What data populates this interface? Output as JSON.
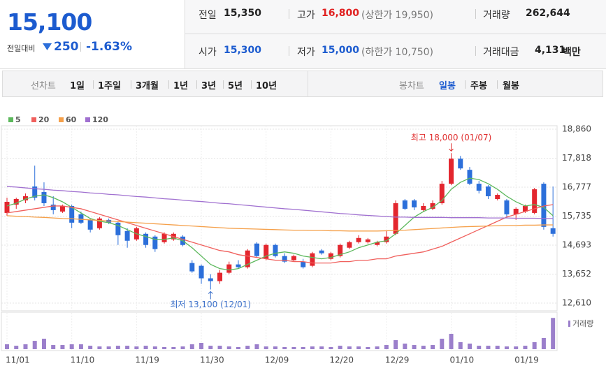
{
  "quote": {
    "price": "15,100",
    "change_label": "전일대비",
    "change": "250",
    "change_rate": "-1.63%",
    "prev_close_label": "전일",
    "prev_close": "15,350",
    "high_label": "고가",
    "high": "16,800",
    "upper_limit": "(상한가 19,950)",
    "volume_label": "거래량",
    "volume": "262,644",
    "open_label": "시가",
    "open": "15,300",
    "low_label": "저가",
    "low": "15,000",
    "lower_limit": "(하한가 10,750)",
    "amount_label": "거래대금",
    "amount": "4,131",
    "amount_unit": "백만"
  },
  "line_tabs": [
    "선차트",
    "1일",
    "1주일",
    "3개월",
    "1년",
    "3년",
    "5년",
    "10년"
  ],
  "candle_tabs": [
    "봉차트",
    "일봉",
    "주봉",
    "월봉"
  ],
  "chart_data": [
    {
      "type": "candlestick",
      "categories": [
        "11/01",
        null,
        null,
        null,
        null,
        null,
        null,
        "11/10",
        null,
        null,
        null,
        null,
        null,
        null,
        "11/19",
        null,
        null,
        null,
        null,
        null,
        null,
        "11/30",
        null,
        null,
        null,
        null,
        null,
        null,
        "12/09",
        null,
        null,
        null,
        null,
        null,
        null,
        "12/20",
        null,
        null,
        null,
        null,
        null,
        "12/29",
        null,
        null,
        null,
        null,
        null,
        null,
        "01/10",
        null,
        null,
        null,
        null,
        null,
        null,
        "01/19",
        null,
        null,
        null,
        null
      ],
      "open": [
        15850,
        16150,
        16300,
        16800,
        16600,
        16150,
        15900,
        16100,
        15800,
        15600,
        15300,
        15600,
        15500,
        15200,
        14900,
        15100,
        15000,
        14800,
        14900,
        15000,
        14050,
        13950,
        13500,
        13400,
        13700,
        14000,
        13900,
        14750,
        14200,
        14700,
        14300,
        14150,
        14100,
        13950,
        14500,
        14200,
        14300,
        14600,
        14800,
        14800,
        14700,
        14800,
        15100,
        16300,
        16300,
        15950,
        16000,
        16200,
        16900,
        17800,
        17400,
        16900,
        16800,
        16350,
        16300,
        15800,
        15900,
        15850,
        16900,
        15300
      ],
      "high": [
        16400,
        16400,
        16550,
        17550,
        16950,
        16450,
        16150,
        16150,
        15900,
        15650,
        15700,
        15650,
        15550,
        15300,
        15350,
        15150,
        15050,
        15150,
        15150,
        15050,
        14150,
        14000,
        13650,
        13800,
        14100,
        14150,
        14550,
        14800,
        14750,
        14750,
        14400,
        14350,
        14200,
        14450,
        14550,
        14450,
        14750,
        14850,
        15050,
        14950,
        14850,
        15200,
        16300,
        16350,
        16350,
        16200,
        16300,
        17000,
        18000,
        17900,
        17500,
        17000,
        16850,
        16550,
        16350,
        16050,
        16150,
        16750,
        16950,
        16800
      ],
      "low": [
        15750,
        16000,
        16200,
        16300,
        16100,
        15800,
        15850,
        15300,
        15450,
        15150,
        15250,
        15450,
        14700,
        14600,
        14850,
        14600,
        14450,
        14750,
        14850,
        14650,
        13700,
        13300,
        13100,
        13300,
        13650,
        13850,
        13850,
        14250,
        14150,
        14250,
        14050,
        14100,
        13850,
        13900,
        14350,
        14150,
        14250,
        14550,
        14750,
        14750,
        14650,
        14750,
        15050,
        15950,
        15950,
        15900,
        15950,
        16150,
        16850,
        17400,
        16850,
        16550,
        16350,
        16300,
        15700,
        15600,
        15850,
        15800,
        15250,
        15000
      ],
      "close": [
        16250,
        16350,
        16450,
        16400,
        16200,
        15950,
        16100,
        15500,
        15500,
        15250,
        15650,
        15500,
        15050,
        14850,
        15300,
        14700,
        14550,
        15100,
        15100,
        14700,
        13750,
        13500,
        13400,
        13700,
        14000,
        13900,
        14500,
        14300,
        14700,
        14300,
        14100,
        14300,
        13900,
        14400,
        14400,
        14400,
        14700,
        14800,
        14950,
        14900,
        14800,
        15000,
        16200,
        16000,
        16050,
        16100,
        16200,
        16900,
        17800,
        17450,
        16900,
        16650,
        16450,
        16500,
        15800,
        16000,
        16100,
        16700,
        15350,
        15100
      ],
      "up_color": "#e3262e",
      "down_color": "#2c6fda",
      "series": [
        {
          "name": "5",
          "color": "#5cb85c",
          "values": [
            16100,
            16200,
            16350,
            16450,
            16500,
            16400,
            16250,
            16050,
            15850,
            15650,
            15550,
            15500,
            15400,
            15250,
            15100,
            15000,
            14900,
            14900,
            14950,
            14850,
            14600,
            14300,
            14000,
            13850,
            13800,
            13850,
            14000,
            14150,
            14300,
            14400,
            14450,
            14400,
            14300,
            14250,
            14200,
            14250,
            14350,
            14450,
            14600,
            14700,
            14800,
            14850,
            15100,
            15400,
            15700,
            15900,
            16050,
            16300,
            16700,
            16950,
            17100,
            17050,
            16900,
            16700,
            16450,
            16250,
            16100,
            16150,
            16050,
            15750
          ]
        },
        {
          "name": "20",
          "color": "#f0605d",
          "values": [
            15850,
            15900,
            15950,
            16000,
            16050,
            16100,
            16100,
            16050,
            16000,
            15900,
            15800,
            15700,
            15600,
            15500,
            15400,
            15300,
            15200,
            15100,
            15000,
            14900,
            14800,
            14700,
            14600,
            14500,
            14450,
            14350,
            14300,
            14250,
            14200,
            14150,
            14150,
            14100,
            14100,
            14050,
            14050,
            14050,
            14100,
            14100,
            14150,
            14150,
            14200,
            14200,
            14300,
            14350,
            14400,
            14450,
            14550,
            14650,
            14800,
            14950,
            15100,
            15250,
            15400,
            15550,
            15700,
            15800,
            15900,
            16000,
            16100,
            16150
          ]
        },
        {
          "name": "60",
          "color": "#f5a04a",
          "values": [
            15750,
            15730,
            15720,
            15700,
            15690,
            15670,
            15650,
            15640,
            15620,
            15600,
            15580,
            15560,
            15540,
            15520,
            15500,
            15480,
            15460,
            15440,
            15420,
            15400,
            15380,
            15360,
            15340,
            15320,
            15300,
            15290,
            15280,
            15270,
            15260,
            15250,
            15240,
            15230,
            15230,
            15220,
            15220,
            15210,
            15210,
            15200,
            15200,
            15200,
            15200,
            15210,
            15220,
            15230,
            15250,
            15270,
            15290,
            15310,
            15330,
            15350,
            15360,
            15370,
            15380,
            15390,
            15400,
            15400,
            15410,
            15410,
            15420,
            15420
          ]
        },
        {
          "name": "120",
          "color": "#a070d0",
          "values": [
            16800,
            16780,
            16750,
            16720,
            16700,
            16670,
            16650,
            16620,
            16600,
            16570,
            16550,
            16520,
            16500,
            16470,
            16440,
            16420,
            16390,
            16360,
            16340,
            16310,
            16280,
            16260,
            16230,
            16200,
            16180,
            16150,
            16120,
            16090,
            16060,
            16030,
            16000,
            15980,
            15950,
            15920,
            15890,
            15860,
            15830,
            15810,
            15780,
            15760,
            15740,
            15720,
            15700,
            15700,
            15690,
            15690,
            15690,
            15690,
            15680,
            15680,
            15680,
            15680,
            15670,
            15670,
            15670,
            15660,
            15660,
            15660,
            15650,
            15650
          ]
        }
      ],
      "ylim": [
        12610,
        18860
      ],
      "yticks": [
        {
          "value": 12610,
          "label": "12,610"
        },
        {
          "value": 13652,
          "label": "13,652"
        },
        {
          "value": 14693,
          "label": "14,693"
        },
        {
          "value": 15735,
          "label": "15,735"
        },
        {
          "value": 16777,
          "label": "16,777"
        },
        {
          "value": 17818,
          "label": "17,818"
        },
        {
          "value": 18860,
          "label": "18,860"
        }
      ],
      "grid": true,
      "annotations": {
        "high": "최고 18,000 (01/07)",
        "low": "최저 13,100 (12/01)"
      }
    },
    {
      "type": "bar",
      "series": [
        {
          "name": "거래량",
          "color": "#9b7fcb",
          "values": [
            41000,
            29000,
            41000,
            70000,
            88000,
            35000,
            35000,
            41000,
            41000,
            29000,
            23000,
            23000,
            29000,
            29000,
            23000,
            29000,
            23000,
            18000,
            18000,
            23000,
            41000,
            53000,
            29000,
            29000,
            23000,
            18000,
            29000,
            41000,
            23000,
            23000,
            18000,
            18000,
            18000,
            23000,
            23000,
            18000,
            29000,
            23000,
            23000,
            18000,
            23000,
            35000,
            76000,
            47000,
            35000,
            29000,
            35000,
            88000,
            129000,
            59000,
            47000,
            29000,
            29000,
            29000,
            23000,
            23000,
            29000,
            59000,
            94000,
            262644
          ]
        }
      ],
      "ylim": [
        0,
        270000
      ]
    }
  ]
}
